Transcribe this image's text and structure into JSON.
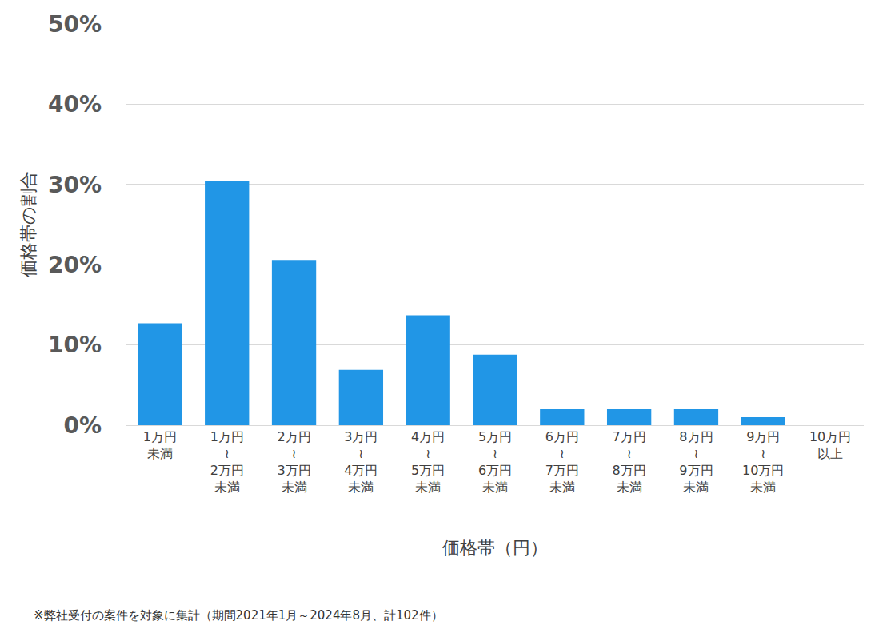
{
  "chart_data": {
    "type": "bar",
    "categories": [
      "1万円\n未満",
      "1万円\n≀\n2万円\n未満",
      "2万円\n≀\n3万円\n未満",
      "3万円\n≀\n4万円\n未満",
      "4万円\n≀\n5万円\n未満",
      "5万円\n≀\n6万円\n未満",
      "6万円\n≀\n7万円\n未満",
      "7万円\n≀\n8万円\n未満",
      "8万円\n≀\n9万円\n未満",
      "9万円\n≀\n10万円\n未満",
      "10万円\n以上"
    ],
    "values": [
      12.7,
      30.4,
      20.6,
      6.9,
      13.7,
      8.8,
      2.0,
      2.0,
      2.0,
      1.0,
      0
    ],
    "color": "#2196e6",
    "x_label": "価格帯（円）",
    "y_label": "価格帯の割合",
    "ylim": [
      0,
      50
    ],
    "yticks": [
      {
        "value": 0,
        "label": "0%"
      },
      {
        "value": 10,
        "label": "10%"
      },
      {
        "value": 20,
        "label": "20%"
      },
      {
        "value": 30,
        "label": "30%"
      },
      {
        "value": 40,
        "label": "40%"
      },
      {
        "value": 50,
        "label": "50%"
      }
    ],
    "grid": true,
    "annotations": [
      "※弊社受付の案件を対象に集計（期間2021年1月～2024年8月、計102件）"
    ]
  }
}
